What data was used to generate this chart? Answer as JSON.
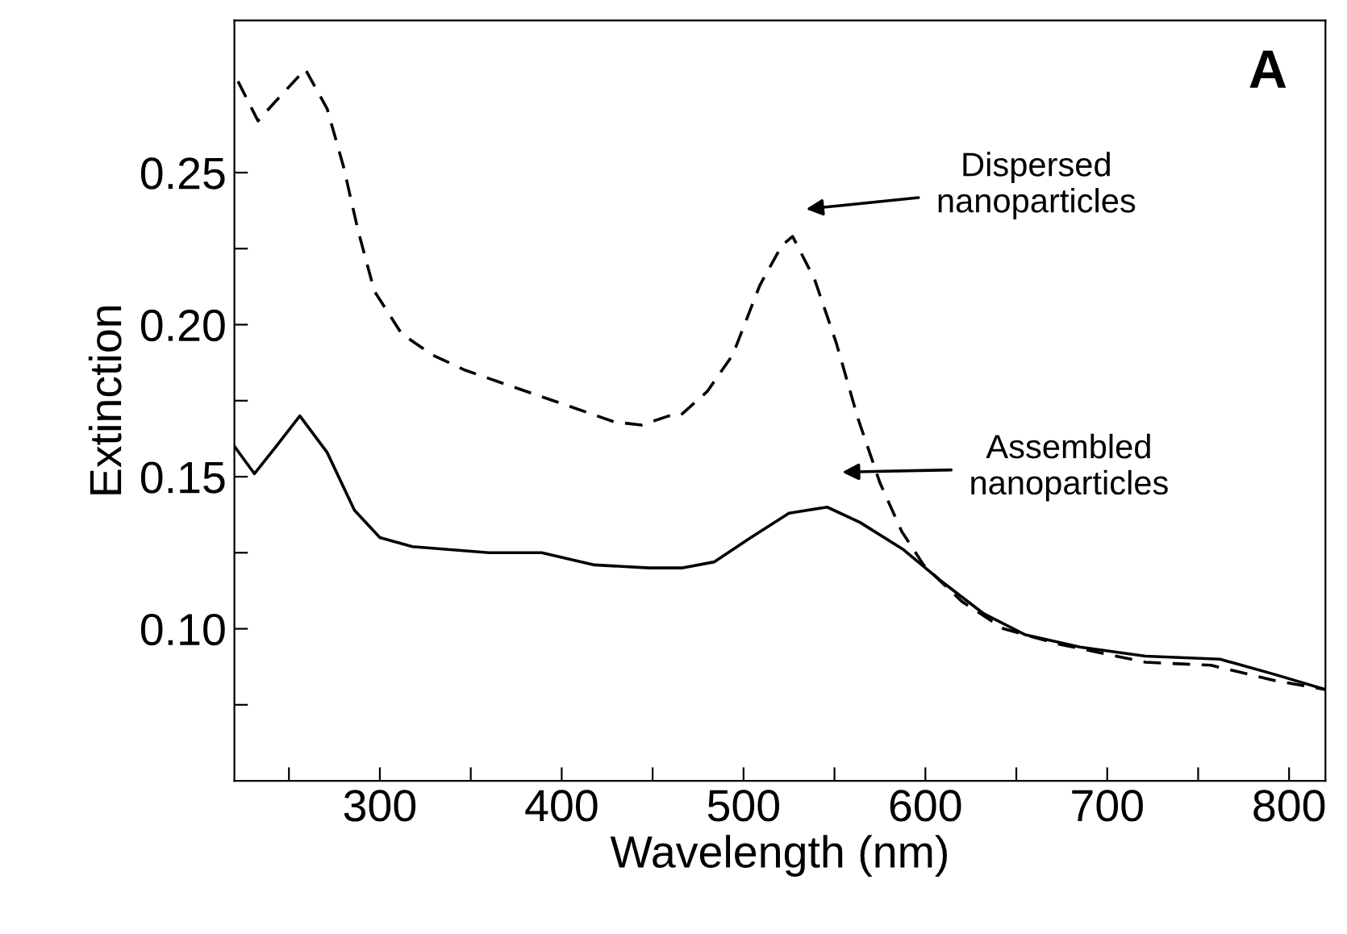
{
  "chart_data": {
    "type": "line",
    "xlabel": "Wavelength (nm)",
    "ylabel": "Extinction",
    "xlim": [
      220,
      820
    ],
    "ylim": [
      0.05,
      0.3
    ],
    "xticks": [
      {
        "value": 250,
        "label": null
      },
      300,
      {
        "value": 350,
        "label": null
      },
      400,
      {
        "value": 450,
        "label": null
      },
      500,
      {
        "value": 550,
        "label": null
      },
      600,
      {
        "value": 650,
        "label": null
      },
      700,
      {
        "value": 750,
        "label": null
      },
      800
    ],
    "yticks": [
      {
        "value": 0.075,
        "label": null
      },
      {
        "value": 0.1,
        "label": "0.10"
      },
      {
        "value": 0.125,
        "label": null
      },
      {
        "value": 0.15,
        "label": "0.15"
      },
      {
        "value": 0.175,
        "label": null
      },
      {
        "value": 0.2,
        "label": "0.20"
      },
      {
        "value": 0.225,
        "label": null
      },
      {
        "value": 0.25,
        "label": "0.25"
      }
    ],
    "grid": false,
    "legend": false,
    "marker": "none",
    "series": [
      {
        "color": "#000000",
        "line_style": "dashed",
        "x": [
          222,
          233,
          242,
          259,
          271,
          280,
          288,
          297,
          312,
          329,
          347,
          376,
          405,
          429,
          444,
          459,
          465,
          480,
          494,
          509,
          521,
          527,
          539,
          551,
          563,
          575,
          587,
          599,
          620,
          643,
          673,
          721,
          757,
          792,
          820
        ],
        "values": [
          0.28,
          0.267,
          0.273,
          0.284,
          0.271,
          0.252,
          0.231,
          0.211,
          0.197,
          0.19,
          0.185,
          0.179,
          0.173,
          0.168,
          0.167,
          0.17,
          0.17,
          0.178,
          0.19,
          0.213,
          0.226,
          0.229,
          0.215,
          0.194,
          0.169,
          0.148,
          0.132,
          0.121,
          0.109,
          0.1,
          0.095,
          0.089,
          0.088,
          0.083,
          0.08
        ]
      },
      {
        "color": "#000000",
        "line_style": "solid",
        "x": [
          220,
          231,
          243,
          256,
          271,
          286,
          300,
          318,
          360,
          389,
          418,
          448,
          466,
          484,
          504,
          525,
          546,
          564,
          588,
          608,
          632,
          655,
          685,
          721,
          762,
          792,
          820
        ],
        "values": [
          0.16,
          0.151,
          0.16,
          0.17,
          0.158,
          0.139,
          0.13,
          0.127,
          0.125,
          0.125,
          0.121,
          0.12,
          0.12,
          0.122,
          0.13,
          0.138,
          0.14,
          0.135,
          0.126,
          0.116,
          0.105,
          0.098,
          0.094,
          0.091,
          0.09,
          0.085,
          0.08
        ]
      }
    ],
    "annotations": [
      "Dispersed\nnanoparticles",
      "Assembled\nnanoparticles",
      "A"
    ]
  }
}
